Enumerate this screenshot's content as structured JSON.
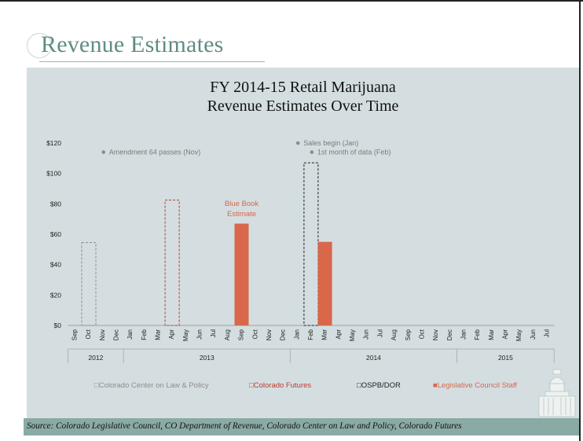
{
  "slide": {
    "heading": "Revenue Estimates",
    "source": "Source: Colorado Legislative Council, CO Department of Revenue, Colorado Center on Law and Policy, Colorado Futures"
  },
  "colors": {
    "panel": "#d4dee1",
    "footer": "#8aaaa5",
    "heading": "#5f8c84",
    "cclp": "#8c8c8c",
    "futures": "#c0392b",
    "ospb": "#222222",
    "lcs": "#d9674a"
  },
  "chart_data": {
    "type": "bar",
    "title_line1": "FY 2014-15 Retail Marijuana",
    "title_line2": "Revenue Estimates Over Time",
    "categories": [
      "Sep",
      "Oct",
      "Nov",
      "Dec",
      "Jan",
      "Feb",
      "Mar",
      "Apr",
      "May",
      "Jun",
      "Jul",
      "Aug",
      "Sep",
      "Oct",
      "Nov",
      "Dec",
      "Jan",
      "Feb",
      "Mar",
      "Apr",
      "May",
      "Jun",
      "Jul",
      "Aug",
      "Sep",
      "Oct",
      "Nov",
      "Dec",
      "Jan",
      "Feb",
      "Mar",
      "Apr",
      "May",
      "Jun",
      "Jul"
    ],
    "years": [
      {
        "label": "2012",
        "start": 0,
        "end": 3
      },
      {
        "label": "2013",
        "start": 4,
        "end": 15
      },
      {
        "label": "2014",
        "start": 16,
        "end": 27
      },
      {
        "label": "2015",
        "start": 28,
        "end": 34
      }
    ],
    "ylim": [
      0,
      120
    ],
    "yticks": [
      0,
      20,
      40,
      60,
      80,
      100,
      120
    ],
    "ytick_labels": [
      "$0",
      "$20",
      "$40",
      "$60",
      "$80",
      "$100",
      "$120"
    ],
    "series": [
      {
        "name": "Colorado Center on Law & Policy",
        "style": "dashed",
        "color": "#8c8c8c",
        "points": [
          {
            "index": 1,
            "value": 54.5
          }
        ]
      },
      {
        "name": "Colorado Futures",
        "style": "dashed",
        "color": "#c0392b",
        "points": [
          {
            "index": 7,
            "value": 82.5
          }
        ]
      },
      {
        "name": "OSPB/DOR",
        "style": "dashed",
        "color": "#222222",
        "points": [
          {
            "index": 17,
            "value": 107
          }
        ]
      },
      {
        "name": "Legislative Council Staff",
        "style": "solid",
        "color": "#d9674a",
        "points": [
          {
            "index": 12,
            "value": 67
          },
          {
            "index": 18,
            "value": 55
          }
        ]
      }
    ],
    "legend_prefix_dashed": "□",
    "legend_prefix_solid": "■",
    "annotations": [
      {
        "text": "Amendment 64 passes (Nov)",
        "index": 2,
        "value": 114
      },
      {
        "text": "Sales begin (Jan)",
        "index": 16,
        "value": 120
      },
      {
        "text": "1st month of data (Feb)",
        "index": 17,
        "value": 114
      }
    ],
    "bar_label": {
      "line1": "Blue Book",
      "line2": "Estimate",
      "index": 12
    }
  }
}
